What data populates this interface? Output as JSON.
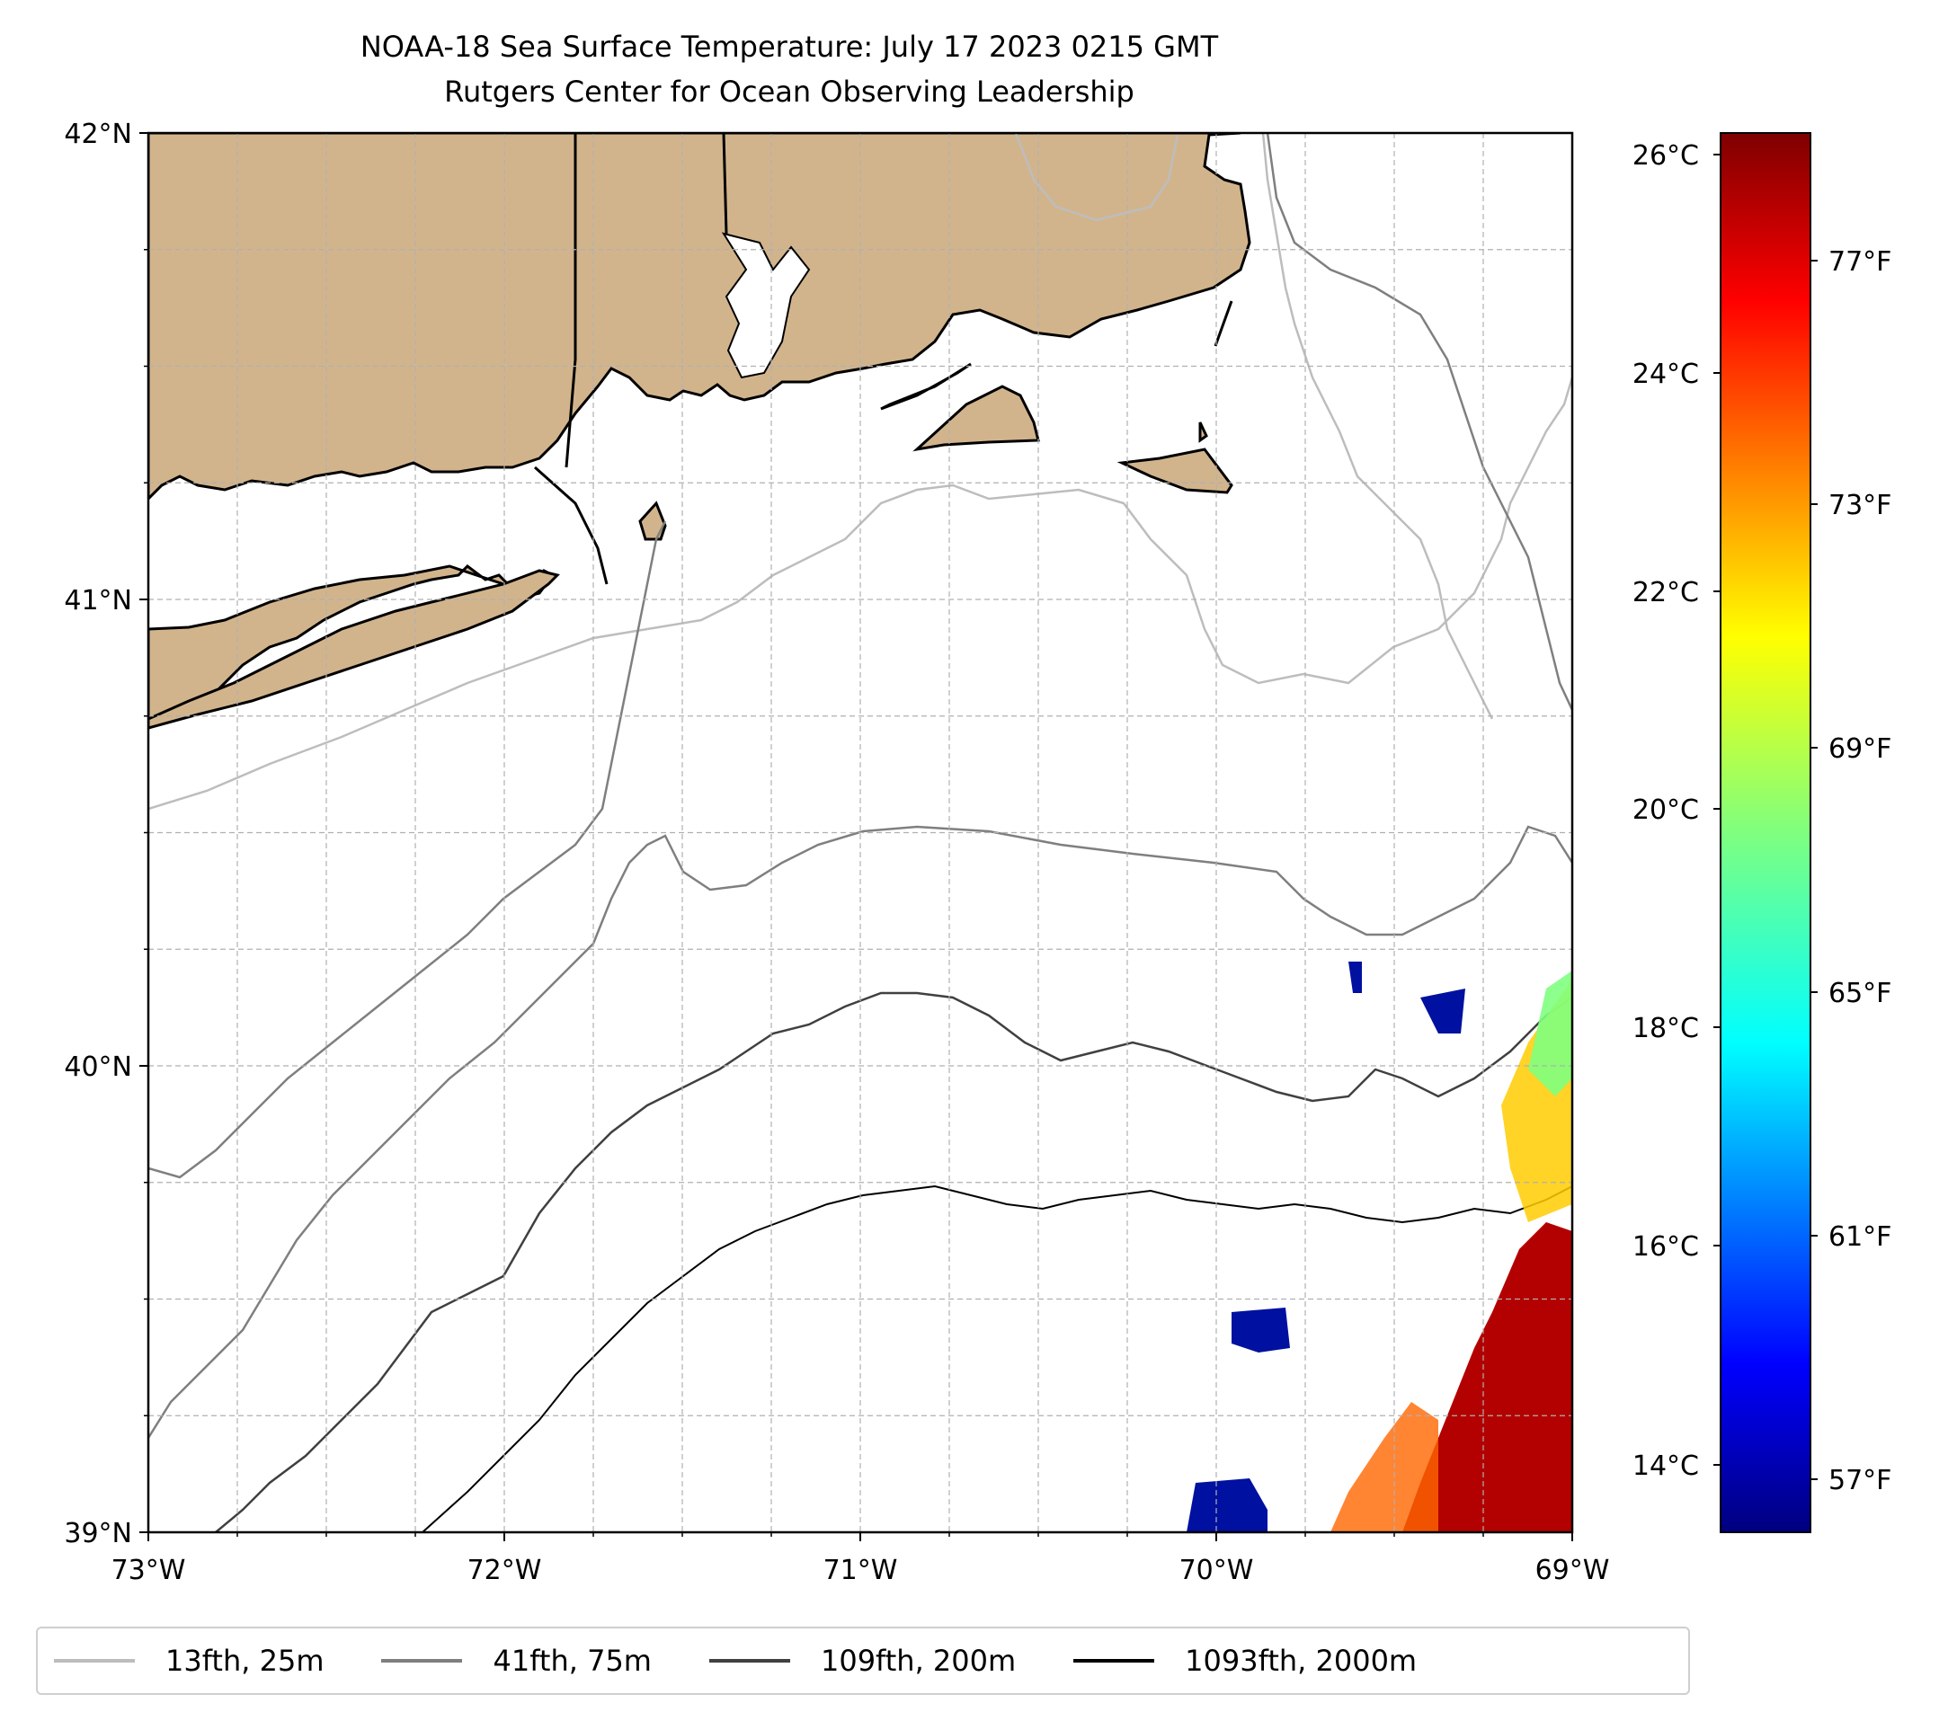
{
  "title": {
    "line1": "NOAA-18 Sea Surface Temperature: July 17 2023 0215 GMT",
    "line2": "Rutgers Center for Ocean Observing Leadership"
  },
  "map": {
    "lon_range": [
      -73,
      -69
    ],
    "lat_range": [
      39,
      42
    ],
    "lon_ticks": [
      {
        "value": -73,
        "label": "73°W"
      },
      {
        "value": -72,
        "label": "72°W"
      },
      {
        "value": -71,
        "label": "71°W"
      },
      {
        "value": -70,
        "label": "70°W"
      },
      {
        "value": -69,
        "label": "69°W"
      }
    ],
    "lat_ticks": [
      {
        "value": 42,
        "label": "42°N"
      },
      {
        "value": 41,
        "label": "41°N"
      },
      {
        "value": 40,
        "label": "40°N"
      },
      {
        "value": 39,
        "label": "39°N"
      }
    ],
    "land_color": "#d2b48c",
    "grid": true
  },
  "colorbar": {
    "colormap": "jet",
    "celsius_ticks": [
      "26°C",
      "24°C",
      "22°C",
      "20°C",
      "18°C",
      "16°C",
      "14°C"
    ],
    "fahrenheit_ticks": [
      "77°F",
      "73°F",
      "69°F",
      "65°F",
      "61°F",
      "57°F"
    ]
  },
  "legend": {
    "items": [
      {
        "label": "13fth, 25m",
        "color": "#bdbdbd"
      },
      {
        "label": "41fth, 75m",
        "color": "#7f7f7f"
      },
      {
        "label": "109fth, 200m",
        "color": "#404040"
      },
      {
        "label": "1093fth, 2000m",
        "color": "#000000"
      }
    ]
  }
}
